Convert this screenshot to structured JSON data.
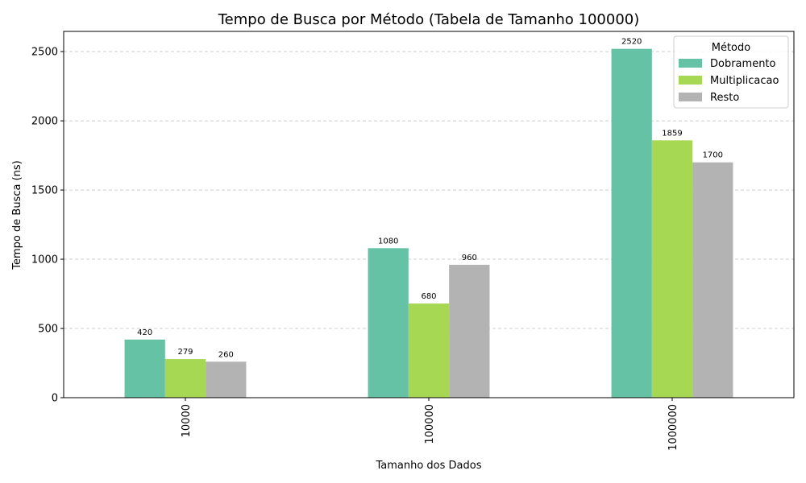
{
  "chart_data": {
    "type": "bar",
    "title": "Tempo de Busca por Método (Tabela de Tamanho 100000)",
    "xlabel": "Tamanho dos Dados",
    "ylabel": "Tempo de Busca (ns)",
    "categories": [
      "10000",
      "100000",
      "1000000"
    ],
    "series": [
      {
        "name": "Dobramento",
        "values": [
          420,
          1080,
          2520
        ],
        "color": "#66c2a5"
      },
      {
        "name": "Multiplicacao",
        "values": [
          279,
          680,
          1859
        ],
        "color": "#a6d854"
      },
      {
        "name": "Resto",
        "values": [
          260,
          960,
          1700
        ],
        "color": "#b3b3b3"
      }
    ],
    "ylim": [
      0,
      2646
    ],
    "yticks": [
      0,
      500,
      1000,
      1500,
      2000,
      2500
    ],
    "grid": "y-dashed",
    "legend": {
      "title": "Método",
      "placement": "top-right"
    },
    "xtick_rotation": "vertical"
  }
}
